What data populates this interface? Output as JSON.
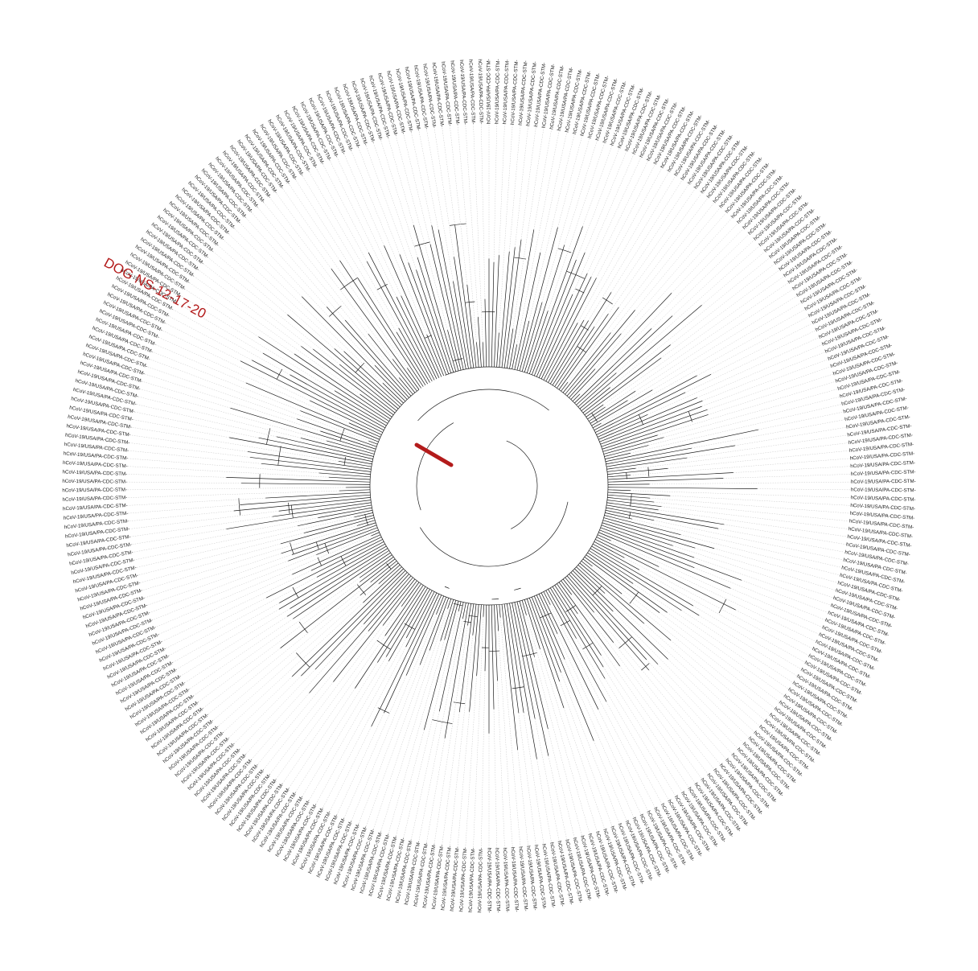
{
  "tree": {
    "highlight": {
      "label": "DOG NS-12-17-20",
      "color": "#b31b1b"
    },
    "tip_label_prefix": "hCoV-19/USA/PA-CDC-STM-",
    "branch_color": "#1a1a1a"
  }
}
